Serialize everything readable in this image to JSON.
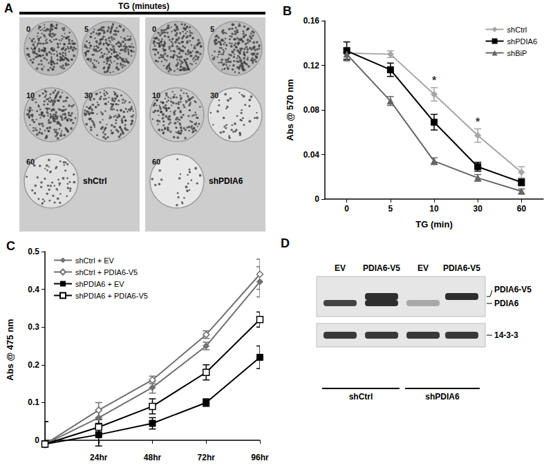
{
  "panel_A": {
    "label": "A",
    "title": "TG (minutes)",
    "plates": [
      {
        "name": "shCtrl",
        "wells": [
          "0",
          "5",
          "10",
          "30",
          "60"
        ]
      },
      {
        "name": "shPDIA6",
        "wells": [
          "0",
          "5",
          "10",
          "30",
          "60"
        ]
      }
    ]
  },
  "chart_data": [
    {
      "title": "B",
      "type": "line",
      "x_label": "TG (min)",
      "y_label": "Abs @ 570 nm",
      "categories": [
        "0",
        "5",
        "10",
        "30",
        "60"
      ],
      "ylim": [
        0,
        0.16
      ],
      "yticks": [
        0,
        0.04,
        0.08,
        0.12,
        0.16
      ],
      "grid": false,
      "legend": "upper right",
      "series": [
        {
          "name": "shCtrl",
          "color": "#a6a6a6",
          "marker": "diamond",
          "values": [
            0.131,
            0.13,
            0.094,
            0.057,
            0.024
          ],
          "errors": [
            0.005,
            0.003,
            0.006,
            0.006,
            0.005
          ]
        },
        {
          "name": "shPDIA6",
          "color": "#000000",
          "marker": "square",
          "values": [
            0.133,
            0.116,
            0.069,
            0.029,
            0.015
          ],
          "errors": [
            0.008,
            0.006,
            0.007,
            0.004,
            0.003
          ]
        },
        {
          "name": "shBiP",
          "color": "#666666",
          "marker": "triangle",
          "values": [
            0.13,
            0.088,
            0.034,
            0.019,
            0.007
          ],
          "errors": [
            0.006,
            0.004,
            0.003,
            0.003,
            0.002
          ]
        }
      ],
      "annotations": [
        {
          "x": "10",
          "text": "*"
        },
        {
          "x": "30",
          "text": "*"
        }
      ]
    },
    {
      "title": "C",
      "type": "line",
      "y_label": "Abs @ 475 nm",
      "categories": [
        null,
        "24hr",
        "48hr",
        "72hr",
        "96hr"
      ],
      "ylim": [
        -0.02,
        0.5
      ],
      "yticks": [
        0,
        0.1,
        0.2,
        0.3,
        0.4,
        0.5
      ],
      "grid": false,
      "legend": "upper left",
      "series": [
        {
          "name": "shCtrl + EV",
          "color": "#707070",
          "marker": "diamond",
          "values": [
            -0.01,
            0.06,
            0.14,
            0.25,
            0.42
          ],
          "errors": [
            0.06,
            0.02,
            0.015,
            0.01,
            0.04
          ]
        },
        {
          "name": "shCtrl + PDIA6-V5",
          "color": "#707070",
          "marker": "open_diamond",
          "values": [
            -0.01,
            0.08,
            0.16,
            0.28,
            0.44
          ],
          "errors": [
            0.06,
            0.02,
            0.01,
            0.01,
            0.04
          ]
        },
        {
          "name": "shPDIA6 + EV",
          "color": "#000000",
          "marker": "square",
          "values": [
            -0.01,
            0.015,
            0.045,
            0.1,
            0.22
          ],
          "errors": [
            0.06,
            0.03,
            0.015,
            0.01,
            0.03
          ]
        },
        {
          "name": "shPDIA6 + PDIA6-V5",
          "color": "#000000",
          "marker": "open_square",
          "values": [
            -0.01,
            0.035,
            0.09,
            0.18,
            0.32
          ],
          "errors": [
            0.06,
            0.02,
            0.02,
            0.02,
            0.02
          ]
        }
      ]
    }
  ],
  "panel_D": {
    "label": "D",
    "lanes": [
      "EV",
      "PDIA6-V5",
      "EV",
      "PDIA6-V5"
    ],
    "bands": [
      "PDIA6-V5",
      "PDIA6",
      "14-3-3"
    ],
    "groups": [
      "shCtrl",
      "shPDIA6"
    ]
  }
}
